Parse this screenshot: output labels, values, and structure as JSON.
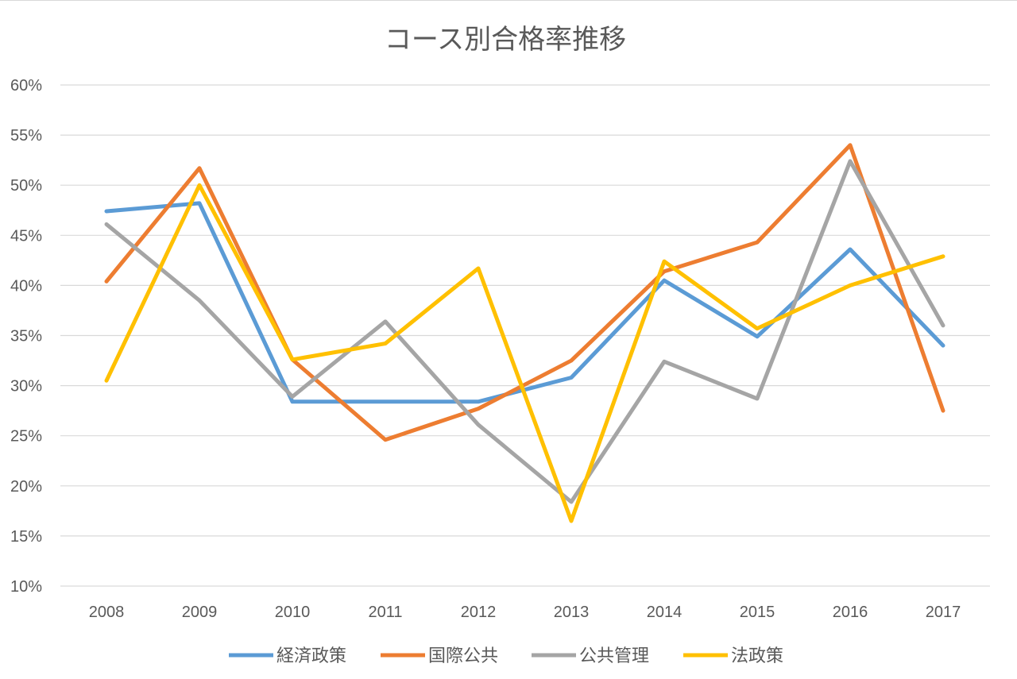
{
  "chart_data": {
    "type": "line",
    "title": "コース別合格率推移",
    "xlabel": "",
    "ylabel": "",
    "categories": [
      "2008",
      "2009",
      "2010",
      "2011",
      "2012",
      "2013",
      "2014",
      "2015",
      "2016",
      "2017"
    ],
    "ylim": [
      0.1,
      0.6
    ],
    "ytick_step": 0.05,
    "yticks": [
      "10%",
      "15%",
      "20%",
      "25%",
      "30%",
      "35%",
      "40%",
      "45%",
      "50%",
      "55%",
      "60%"
    ],
    "grid": true,
    "legend_position": "bottom",
    "series": [
      {
        "name": "経済政策",
        "color": "#5b9bd5",
        "values": [
          0.474,
          0.482,
          0.284,
          0.284,
          0.284,
          0.308,
          0.405,
          0.349,
          0.436,
          0.34
        ]
      },
      {
        "name": "国際公共",
        "color": "#ed7d31",
        "values": [
          0.404,
          0.517,
          0.326,
          0.246,
          0.277,
          0.325,
          0.414,
          0.443,
          0.54,
          0.275
        ]
      },
      {
        "name": "公共管理",
        "color": "#a5a5a5",
        "values": [
          0.461,
          0.385,
          0.289,
          0.364,
          0.261,
          0.184,
          0.324,
          0.287,
          0.524,
          0.36
        ]
      },
      {
        "name": "法政策",
        "color": "#ffc000",
        "values": [
          0.305,
          0.5,
          0.326,
          0.342,
          0.417,
          0.165,
          0.424,
          0.357,
          0.4,
          0.429
        ]
      }
    ]
  }
}
